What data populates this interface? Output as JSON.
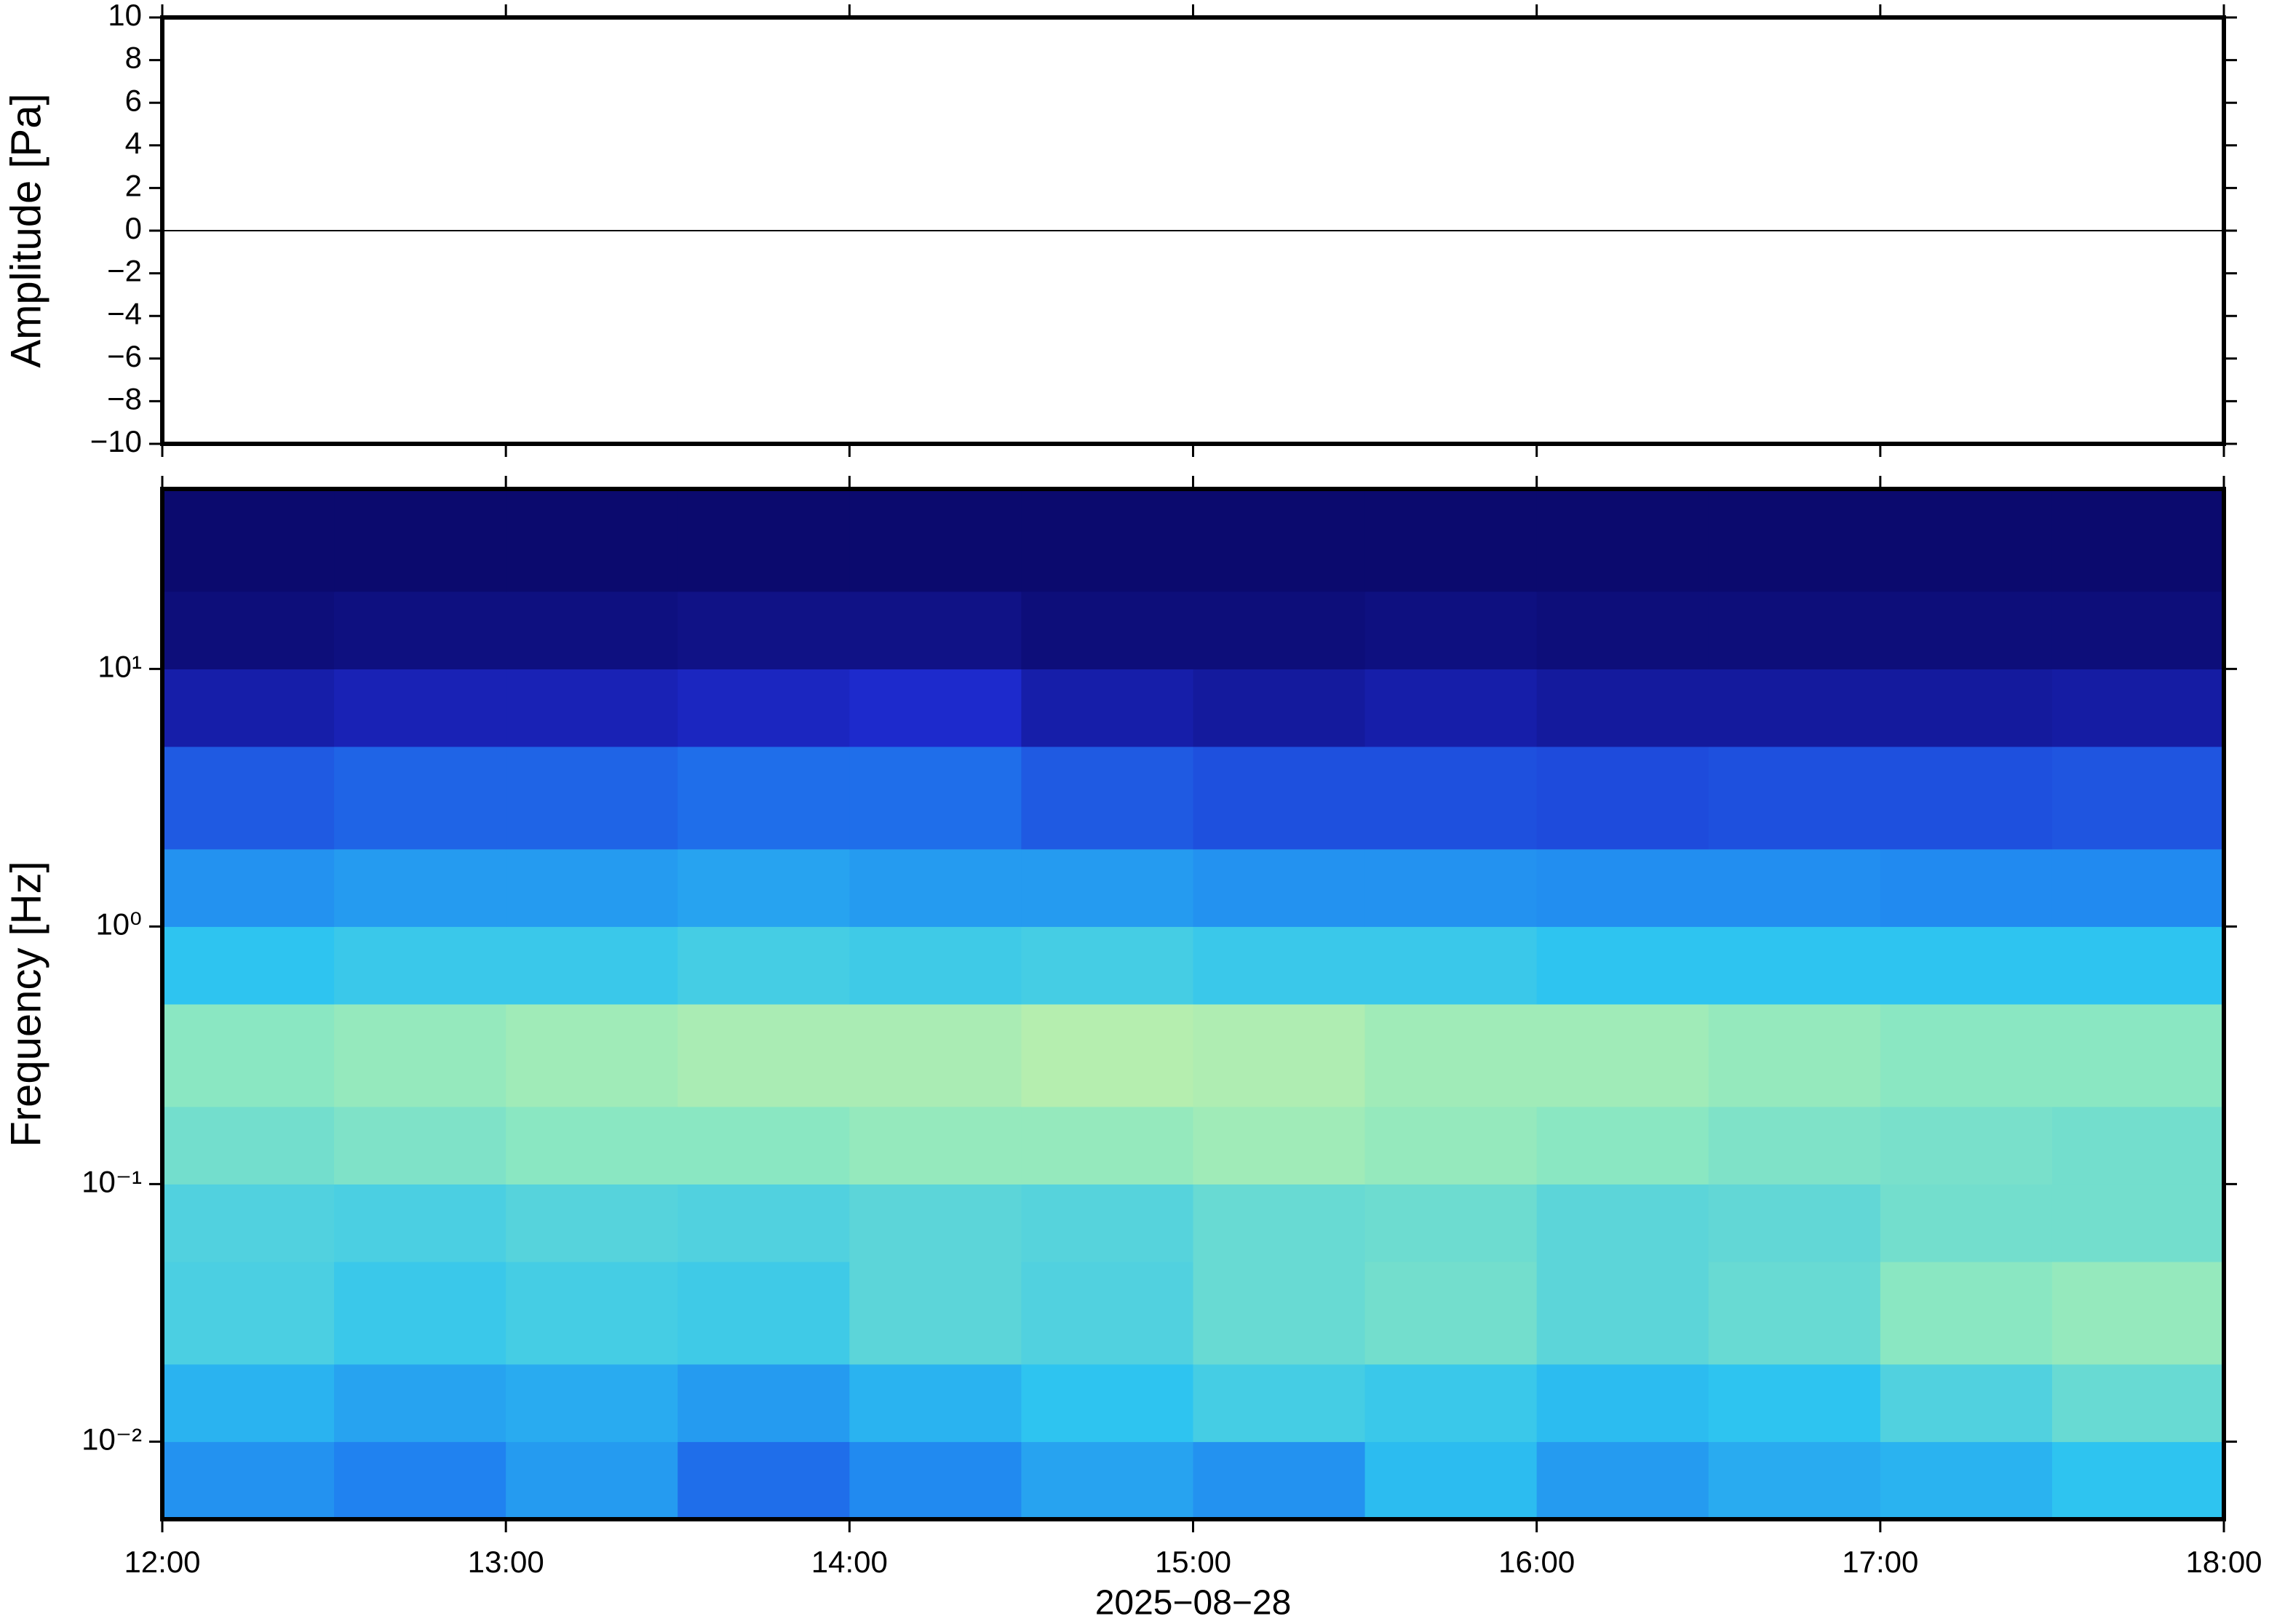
{
  "chart_data": [
    {
      "type": "line",
      "ylabel": "Amplitude [Pa]",
      "x": [
        12,
        12.5,
        13,
        13.5,
        14,
        14.5,
        15,
        15.5,
        16,
        16.5,
        17,
        17.5,
        18
      ],
      "values": [
        0,
        0,
        0,
        0,
        0,
        0,
        0,
        0,
        0,
        0,
        0,
        0,
        0
      ],
      "color": "#000000",
      "xlim": [
        12,
        18
      ],
      "xticks": [
        12,
        13,
        14,
        15,
        16,
        17,
        18
      ],
      "ylim": [
        -10,
        10
      ],
      "yticks": [
        {
          "value": -10,
          "label": "−10"
        },
        {
          "value": -8,
          "label": "−8"
        },
        {
          "value": -6,
          "label": "−6"
        },
        {
          "value": -4,
          "label": "−4"
        },
        {
          "value": -2,
          "label": "−2"
        },
        0,
        2,
        4,
        6,
        8,
        10
      ]
    },
    {
      "type": "heatmap",
      "ylabel": "Frequency [Hz]",
      "xlabel": "2025−08−28",
      "log_y": true,
      "x_edges": [
        12,
        12.5,
        13,
        13.5,
        14,
        14.5,
        15,
        15.5,
        16,
        16.5,
        17,
        17.5,
        18
      ],
      "y_edges": [
        0.005,
        0.01,
        0.02,
        0.05,
        0.1,
        0.2,
        0.5,
        1,
        2,
        5,
        10,
        20,
        50
      ],
      "values": [
        [
          0.38,
          0.34,
          0.4,
          0.3,
          0.36,
          0.42,
          0.38,
          0.48,
          0.4,
          0.44,
          0.46,
          0.5
        ],
        [
          0.46,
          0.42,
          0.44,
          0.4,
          0.46,
          0.5,
          0.54,
          0.52,
          0.48,
          0.5,
          0.56,
          0.6
        ],
        [
          0.55,
          0.52,
          0.54,
          0.53,
          0.58,
          0.56,
          0.6,
          0.62,
          0.58,
          0.6,
          0.66,
          0.68
        ],
        [
          0.56,
          0.55,
          0.57,
          0.56,
          0.58,
          0.57,
          0.6,
          0.61,
          0.58,
          0.59,
          0.62,
          0.62
        ],
        [
          0.62,
          0.64,
          0.66,
          0.66,
          0.68,
          0.68,
          0.7,
          0.68,
          0.66,
          0.64,
          0.63,
          0.62
        ],
        [
          0.66,
          0.68,
          0.7,
          0.72,
          0.72,
          0.74,
          0.73,
          0.7,
          0.7,
          0.68,
          0.66,
          0.66
        ],
        [
          0.5,
          0.52,
          0.52,
          0.54,
          0.53,
          0.54,
          0.52,
          0.52,
          0.5,
          0.5,
          0.5,
          0.5
        ],
        [
          0.38,
          0.4,
          0.4,
          0.42,
          0.4,
          0.4,
          0.38,
          0.38,
          0.37,
          0.37,
          0.36,
          0.36
        ],
        [
          0.26,
          0.28,
          0.28,
          0.3,
          0.3,
          0.26,
          0.24,
          0.24,
          0.23,
          0.24,
          0.24,
          0.25
        ],
        [
          0.1,
          0.12,
          0.12,
          0.14,
          0.16,
          0.1,
          0.08,
          0.1,
          0.08,
          0.08,
          0.08,
          0.09
        ],
        [
          0.02,
          0.03,
          0.03,
          0.04,
          0.04,
          0.02,
          0.02,
          0.03,
          0.02,
          0.02,
          0.02,
          0.02
        ],
        [
          0,
          0,
          0,
          0,
          0,
          0,
          0,
          0,
          0,
          0,
          0,
          0
        ]
      ],
      "colormap": [
        "#0b0a6e",
        "#1e2bd0",
        "#1f7ff0",
        "#2ec4f0",
        "#8ee8c0",
        "#e6f59a",
        "#f5d060"
      ],
      "xlim": [
        12,
        18
      ],
      "xticks": [
        {
          "value": 12,
          "label": "12:00"
        },
        {
          "value": 13,
          "label": "13:00"
        },
        {
          "value": 14,
          "label": "14:00"
        },
        {
          "value": 15,
          "label": "15:00"
        },
        {
          "value": 16,
          "label": "16:00"
        },
        {
          "value": 17,
          "label": "17:00"
        },
        {
          "value": 18,
          "label": "18:00"
        }
      ],
      "ylim": [
        0.005,
        50
      ],
      "yticks": [
        {
          "value": 0.01,
          "label": "10⁻²"
        },
        {
          "value": 0.1,
          "label": "10⁻¹"
        },
        {
          "value": 1,
          "label": "10⁰"
        },
        {
          "value": 10,
          "label": "10¹"
        }
      ]
    }
  ]
}
